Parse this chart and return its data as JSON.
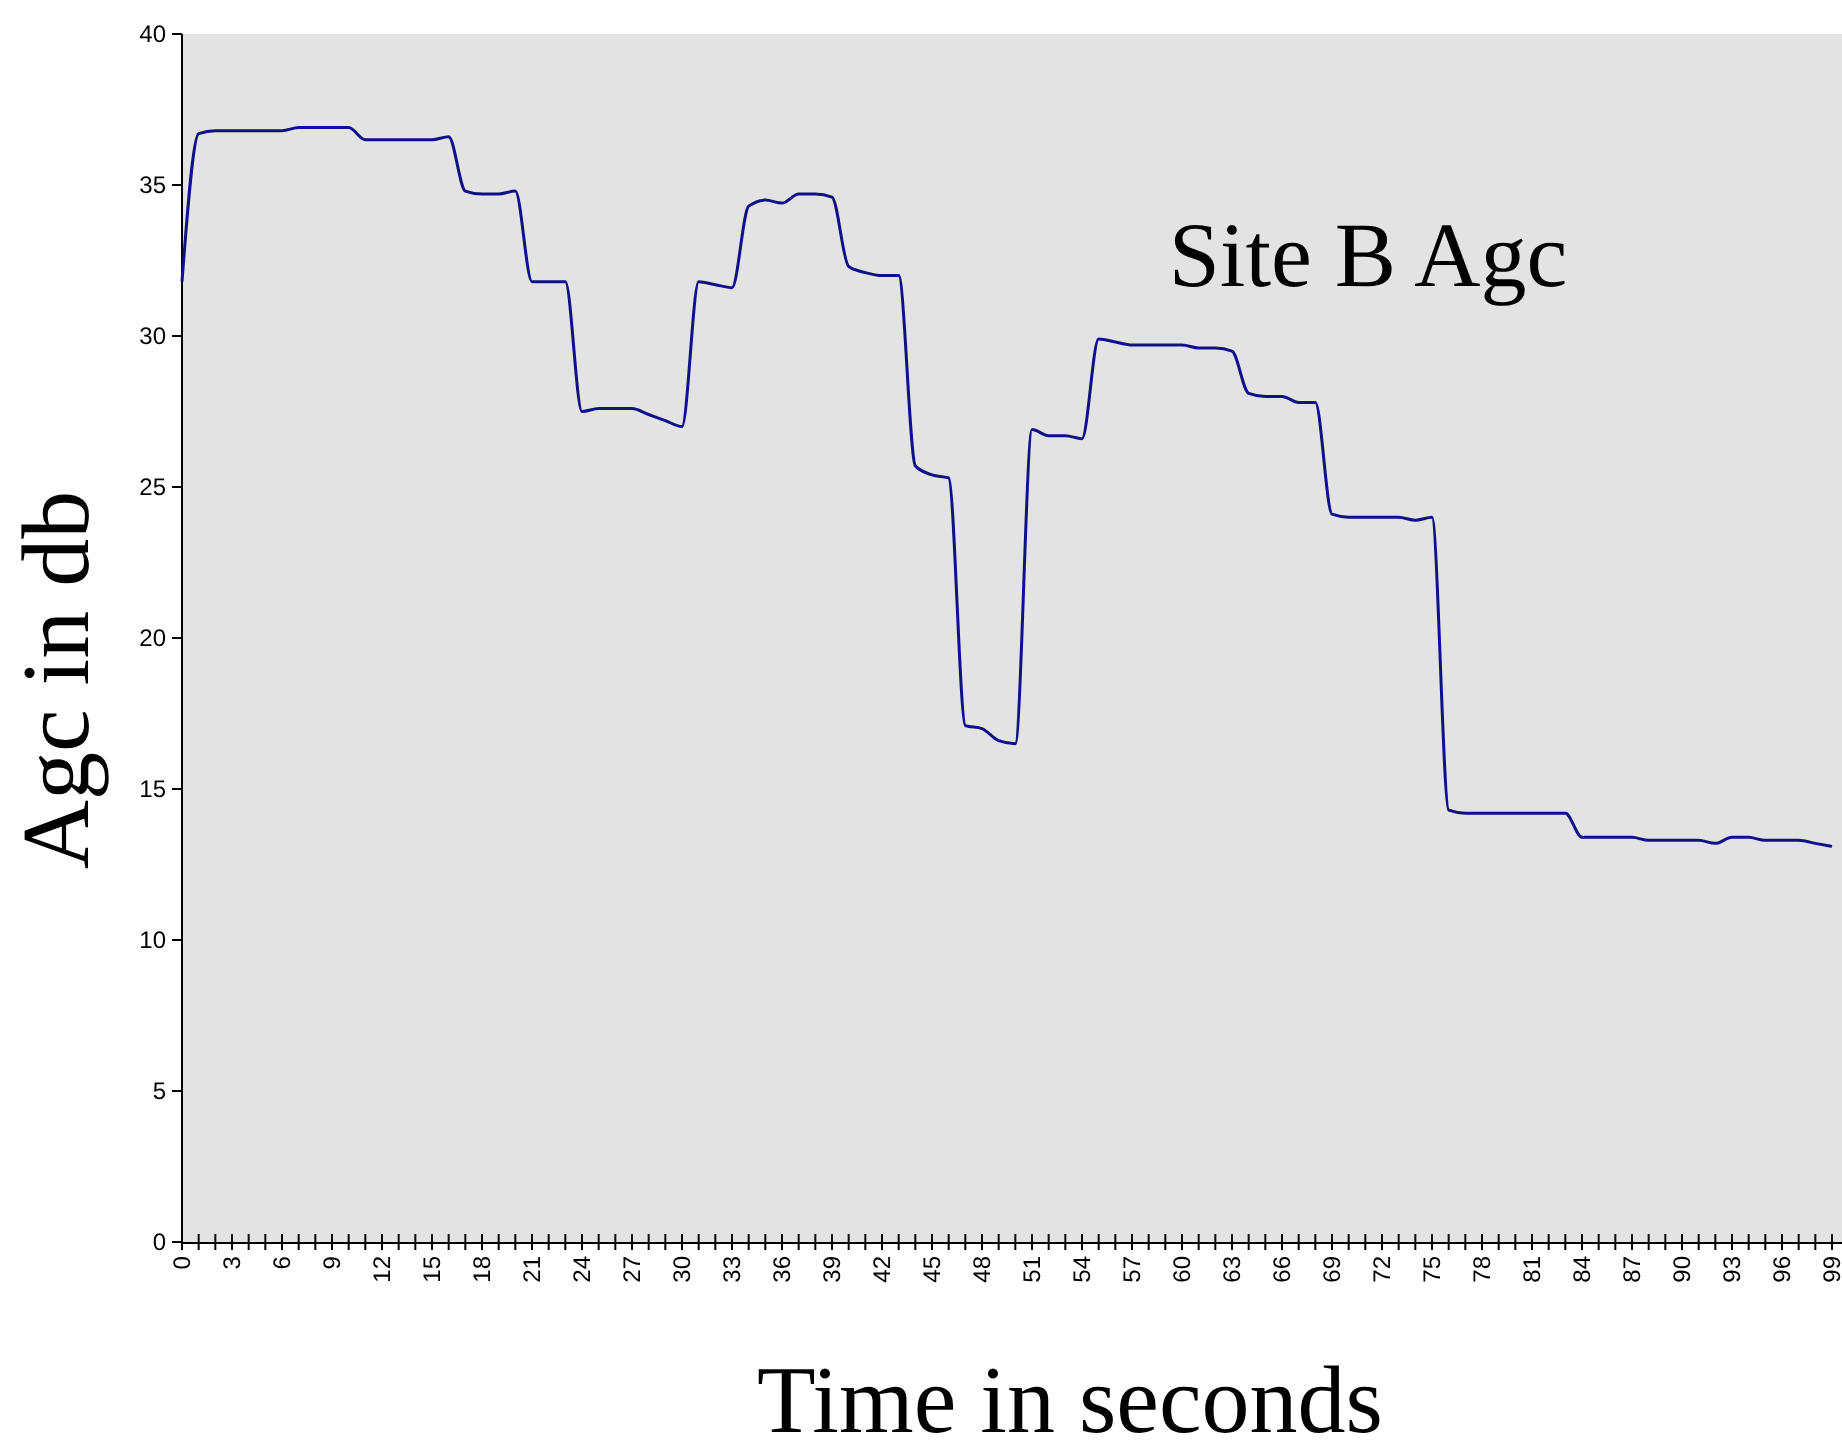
{
  "chart_data": {
    "type": "line",
    "title": "Site B Agc",
    "xlabel": "Time in seconds",
    "ylabel": "Agc in db",
    "categories": [
      "0",
      null,
      null,
      "3",
      null,
      null,
      "6",
      null,
      null,
      "9",
      null,
      null,
      "12",
      null,
      null,
      "15",
      null,
      null,
      "18",
      null,
      null,
      "21",
      null,
      null,
      "24",
      null,
      null,
      "27",
      null,
      null,
      "30",
      null,
      null,
      "33",
      null,
      null,
      "36",
      null,
      null,
      "39",
      null,
      null,
      "42",
      null,
      null,
      "45",
      null,
      null,
      "48",
      null,
      null,
      "51",
      null,
      null,
      "54",
      null,
      null,
      "57",
      null,
      null,
      "60",
      null,
      null,
      "63",
      null,
      null,
      "66",
      null,
      null,
      "69",
      null,
      null,
      "72",
      null,
      null,
      "75",
      null,
      null,
      "78",
      null,
      null,
      "81",
      null,
      null,
      "84",
      null,
      null,
      "87",
      null,
      null,
      "90",
      null,
      null,
      "93",
      null,
      null,
      "96",
      null,
      null,
      "99"
    ],
    "series": [
      {
        "color": "#10108a",
        "values": [
          31.8,
          36.7,
          36.8,
          36.8,
          36.8,
          36.8,
          36.8,
          36.9,
          36.9,
          36.9,
          36.9,
          36.5,
          36.5,
          36.5,
          36.5,
          36.5,
          36.6,
          34.8,
          34.7,
          34.7,
          34.8,
          31.8,
          31.8,
          31.8,
          27.5,
          27.6,
          27.6,
          27.6,
          27.4,
          27.2,
          27.0,
          31.8,
          31.7,
          31.6,
          34.3,
          34.5,
          34.4,
          34.7,
          34.7,
          34.6,
          32.3,
          32.1,
          32.0,
          32.0,
          25.7,
          25.4,
          25.3,
          17.1,
          17.0,
          16.6,
          16.5,
          26.9,
          26.7,
          26.7,
          26.6,
          29.9,
          29.8,
          29.7,
          29.7,
          29.7,
          29.7,
          29.6,
          29.6,
          29.5,
          28.1,
          28.0,
          28.0,
          27.8,
          27.8,
          24.1,
          24.0,
          24.0,
          24.0,
          24.0,
          23.9,
          24.0,
          14.3,
          14.2,
          14.2,
          14.2,
          14.2,
          14.2,
          14.2,
          14.2,
          13.4,
          13.4,
          13.4,
          13.4,
          13.3,
          13.3,
          13.3,
          13.3,
          13.2,
          13.4,
          13.4,
          13.3,
          13.3,
          13.3,
          13.2,
          13.1
        ]
      }
    ],
    "ylim": [
      0,
      40
    ],
    "yticks": [
      0,
      5,
      10,
      15,
      20,
      25,
      30,
      35,
      40
    ],
    "grid": false,
    "legend": false,
    "marker": "none",
    "line_style": "solid"
  }
}
